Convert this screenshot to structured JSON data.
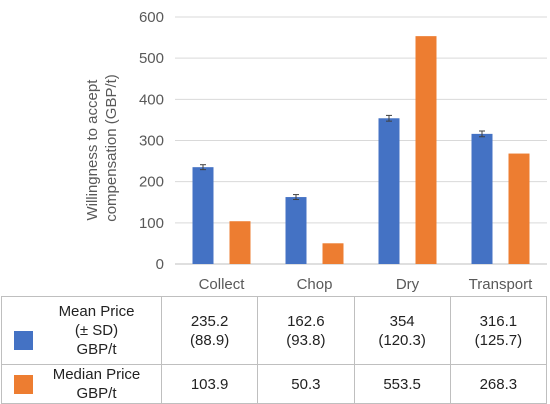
{
  "chart_data": {
    "type": "bar",
    "categories": [
      "Collect",
      "Chop",
      "Dry",
      "Transport"
    ],
    "series": [
      {
        "name": "Mean Price",
        "values": [
          235.2,
          162.6,
          354,
          316.1
        ],
        "color": "#4472C4",
        "error": [
          6,
          6,
          7,
          7
        ]
      },
      {
        "name": "Median Price",
        "values": [
          103.9,
          50.3,
          553.5,
          268.3
        ],
        "color": "#ED7D31"
      }
    ],
    "ylabel_line1": "Willingness to accept",
    "ylabel_line2": "compensation (GBP/t)",
    "ylim": [
      0,
      600
    ],
    "yticks": [
      "0",
      "100",
      "200",
      "300",
      "400",
      "500",
      "600"
    ],
    "grid": true
  },
  "table": {
    "rows": [
      {
        "label_lines": [
          "Mean Price",
          "(± SD)",
          "GBP/t"
        ],
        "color": "#4472C4",
        "cells": [
          {
            "value": "235.2",
            "sd": "(88.9)"
          },
          {
            "value": "162.6",
            "sd": "(93.8)"
          },
          {
            "value": "354",
            "sd": "(120.3)"
          },
          {
            "value": "316.1",
            "sd": "(125.7)"
          }
        ]
      },
      {
        "label_lines": [
          "Median Price",
          "GBP/t"
        ],
        "color": "#ED7D31",
        "cells": [
          {
            "value": "103.9"
          },
          {
            "value": "50.3"
          },
          {
            "value": "553.5"
          },
          {
            "value": "268.3"
          }
        ]
      }
    ]
  }
}
